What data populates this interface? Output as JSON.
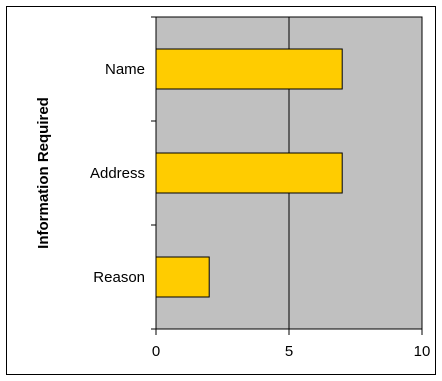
{
  "chart_data": {
    "type": "bar",
    "orientation": "horizontal",
    "title": "",
    "xlabel": "",
    "ylabel": "Information Required",
    "categories": [
      "Name",
      "Address",
      "Reason"
    ],
    "values": [
      7,
      7,
      2
    ],
    "xlim": [
      0,
      10
    ],
    "xticks": [
      "0",
      "5",
      "10"
    ],
    "grid": "vertical lines at 5 and 10",
    "legend": "none",
    "colors": {
      "bar_fill": "#FFCC00",
      "bar_stroke": "#000000",
      "plot_background": "#C0C0C0"
    }
  }
}
